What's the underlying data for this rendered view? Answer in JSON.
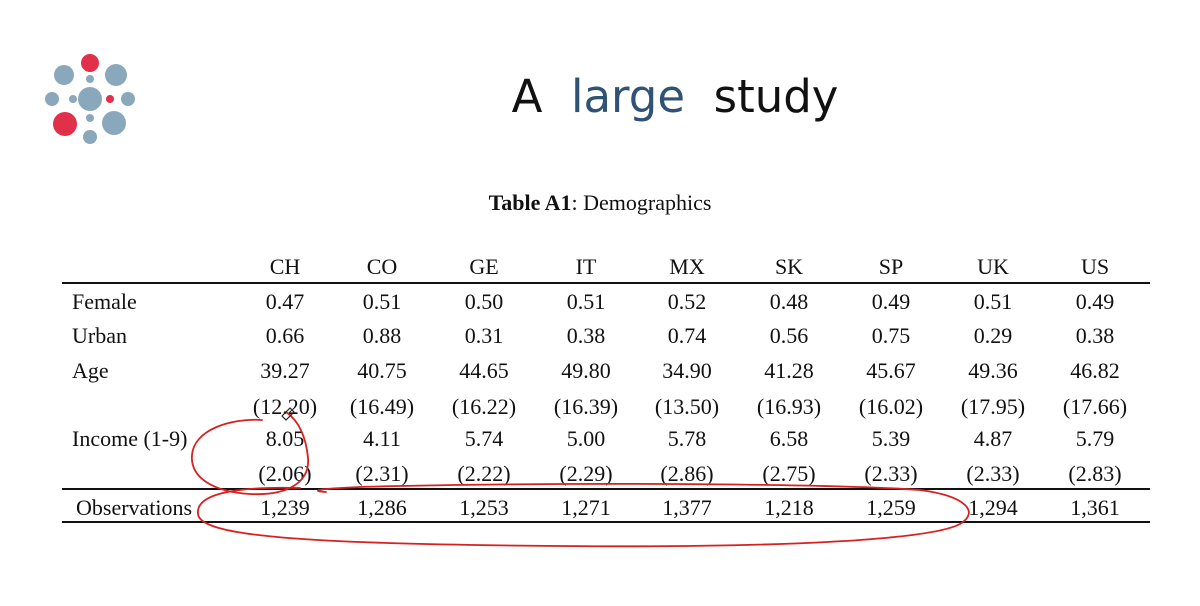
{
  "slide": {
    "title_pre": "A",
    "title_accent": "large",
    "title_post": "study"
  },
  "colors": {
    "accent": "#2f5275",
    "logo_blue": "#8aa8bb",
    "logo_red": "#e0304a",
    "annotation_red": "#d92020"
  },
  "table": {
    "caption_bold": "Table A1",
    "caption_rest": ": Demographics",
    "columns": [
      "CH",
      "CO",
      "GE",
      "IT",
      "MX",
      "SK",
      "SP",
      "UK",
      "US"
    ],
    "rows": [
      {
        "label": "Female",
        "values": [
          "0.47",
          "0.51",
          "0.50",
          "0.51",
          "0.52",
          "0.48",
          "0.49",
          "0.51",
          "0.49"
        ]
      },
      {
        "label": "Urban",
        "values": [
          "0.66",
          "0.88",
          "0.31",
          "0.38",
          "0.74",
          "0.56",
          "0.75",
          "0.29",
          "0.38"
        ]
      },
      {
        "label": "Age",
        "values": [
          "39.27",
          "40.75",
          "44.65",
          "49.80",
          "34.90",
          "41.28",
          "45.67",
          "49.36",
          "46.82"
        ]
      },
      {
        "label": "",
        "values": [
          "(12.20)",
          "(16.49)",
          "(16.22)",
          "(16.39)",
          "(13.50)",
          "(16.93)",
          "(16.02)",
          "(17.95)",
          "(17.66)"
        ]
      },
      {
        "label": "Income (1-9)",
        "values": [
          "8.05",
          "4.11",
          "5.74",
          "5.00",
          "5.78",
          "6.58",
          "5.39",
          "4.87",
          "5.79"
        ]
      },
      {
        "label": "",
        "values": [
          "(2.06)",
          "(2.31)",
          "(2.22)",
          "(2.29)",
          "(2.86)",
          "(2.75)",
          "(2.33)",
          "(2.33)",
          "(2.83)"
        ]
      }
    ],
    "observations": {
      "label": "Observations",
      "values": [
        "1,239",
        "1,286",
        "1,253",
        "1,271",
        "1,377",
        "1,218",
        "1,259",
        "1,294",
        "1,361"
      ]
    }
  }
}
